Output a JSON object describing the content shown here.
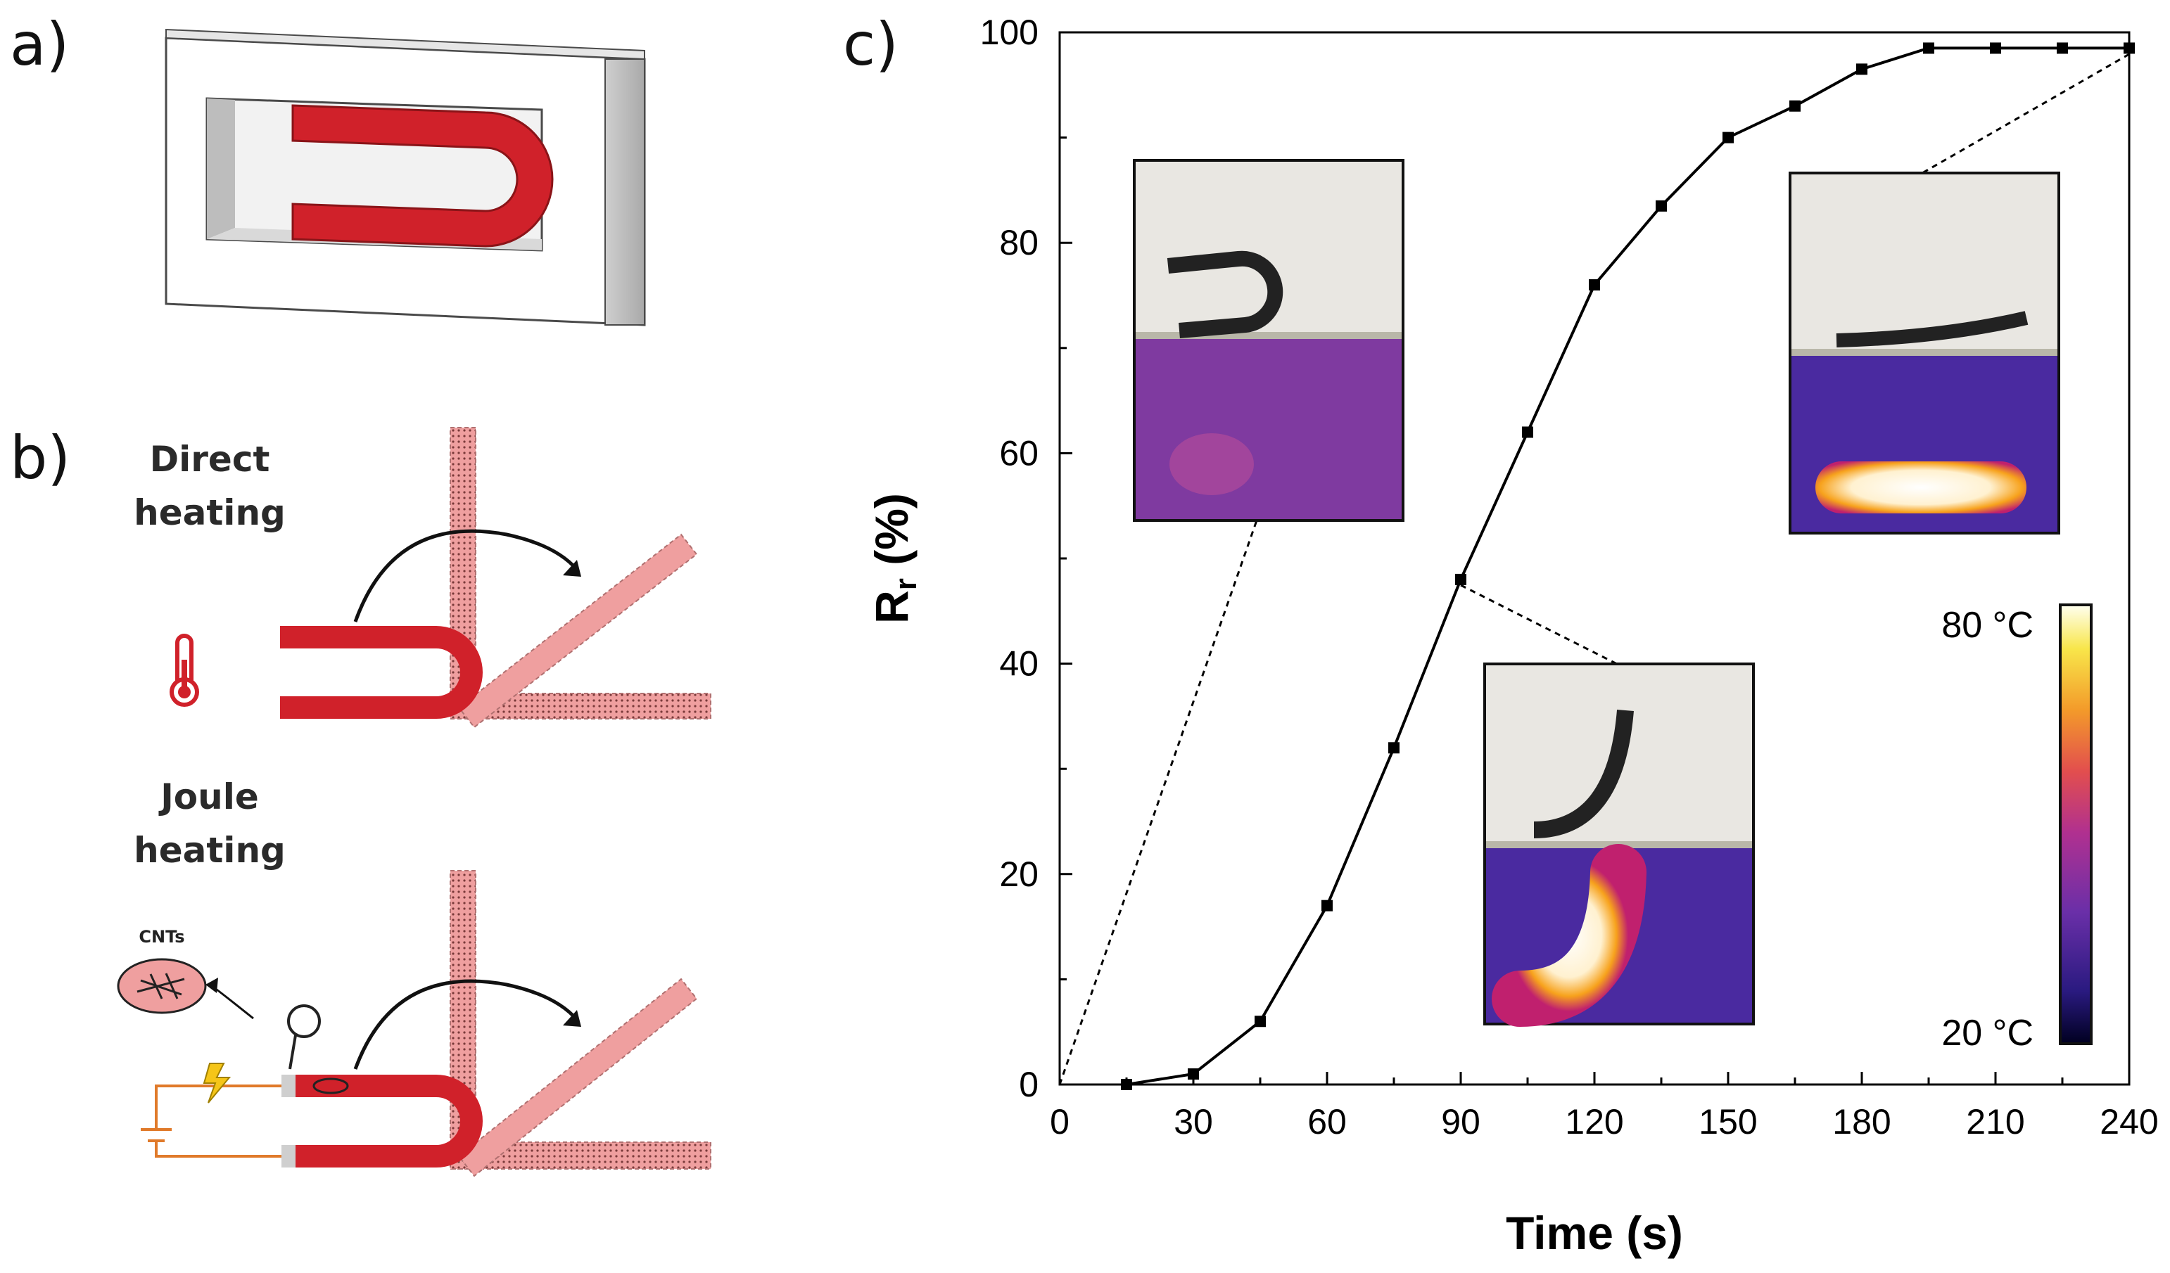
{
  "panels": {
    "a": "a)",
    "b": "b)",
    "c": "c)"
  },
  "sketch": {
    "direct_heating_line1": "Direct",
    "direct_heating_line2": "heating",
    "joule_heating_line1": "Joule",
    "joule_heating_line2": "heating",
    "cnts_label": "CNTs"
  },
  "colors": {
    "magnet_red": "#d0212a",
    "fixture_pink": "#ef9f9f",
    "wire_orange": "#e07a2a",
    "bolt_yellow": "#f5c518",
    "ir_background": "#5a2d9c"
  },
  "colorbar": {
    "max_label": "80 °C",
    "min_label": "20 °C"
  },
  "chart_data": {
    "type": "line",
    "xlabel": "Time (s)",
    "ylabel_main": "R",
    "ylabel_sub": "r",
    "ylabel_suffix": " (%)",
    "xlim": [
      0,
      240
    ],
    "ylim": [
      0,
      100
    ],
    "x_ticks": [
      0,
      30,
      60,
      90,
      120,
      150,
      180,
      210,
      240
    ],
    "y_ticks": [
      0,
      20,
      40,
      60,
      80,
      100
    ],
    "series": [
      {
        "x": [
          15,
          30,
          45,
          60,
          75,
          90,
          105,
          120,
          135,
          150,
          165,
          180,
          195,
          210,
          225,
          240
        ],
        "y": [
          0,
          1,
          6,
          17,
          32,
          48,
          62,
          76,
          83.5,
          90,
          93,
          96.5,
          98.5,
          98.5,
          98.5,
          98.5
        ]
      }
    ],
    "grid": false,
    "legend": "none",
    "marker": "square"
  }
}
